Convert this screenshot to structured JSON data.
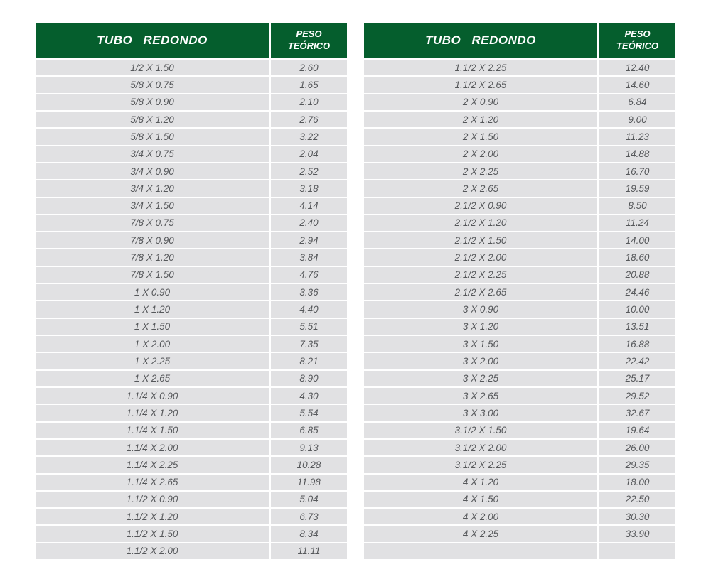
{
  "colors": {
    "header_green": "#055e2d",
    "row_gray": "#e1e1e3",
    "text_gray": "#56585b",
    "header_text": "#ffffff"
  },
  "tables": [
    {
      "id": "left",
      "header": {
        "product": "TUBO REDONDO",
        "weight": "PESO TEÓRICO"
      },
      "rows": [
        {
          "size": "1/2 X 1.50",
          "weight": "2.60"
        },
        {
          "size": "5/8 X 0.75",
          "weight": "1.65"
        },
        {
          "size": "5/8 X 0.90",
          "weight": "2.10"
        },
        {
          "size": "5/8 X 1.20",
          "weight": "2.76"
        },
        {
          "size": "5/8 X 1.50",
          "weight": "3.22"
        },
        {
          "size": "3/4 X 0.75",
          "weight": "2.04"
        },
        {
          "size": "3/4 X 0.90",
          "weight": "2.52"
        },
        {
          "size": "3/4 X 1.20",
          "weight": "3.18"
        },
        {
          "size": "3/4 X 1.50",
          "weight": "4.14"
        },
        {
          "size": "7/8 X 0.75",
          "weight": "2.40"
        },
        {
          "size": "7/8 X 0.90",
          "weight": "2.94"
        },
        {
          "size": "7/8 X 1.20",
          "weight": "3.84"
        },
        {
          "size": "7/8 X 1.50",
          "weight": "4.76"
        },
        {
          "size": "1 X 0.90",
          "weight": "3.36"
        },
        {
          "size": "1 X 1.20",
          "weight": "4.40"
        },
        {
          "size": "1 X 1.50",
          "weight": "5.51"
        },
        {
          "size": "1 X 2.00",
          "weight": "7.35"
        },
        {
          "size": "1 X 2.25",
          "weight": "8.21"
        },
        {
          "size": "1 X 2.65",
          "weight": "8.90"
        },
        {
          "size": "1.1/4 X 0.90",
          "weight": "4.30"
        },
        {
          "size": "1.1/4 X 1.20",
          "weight": "5.54"
        },
        {
          "size": "1.1/4 X 1.50",
          "weight": "6.85"
        },
        {
          "size": "1.1/4 X 2.00",
          "weight": "9.13"
        },
        {
          "size": "1.1/4 X 2.25",
          "weight": "10.28"
        },
        {
          "size": "1.1/4 X 2.65",
          "weight": "11.98"
        },
        {
          "size": "1.1/2 X 0.90",
          "weight": "5.04"
        },
        {
          "size": "1.1/2 X 1.20",
          "weight": "6.73"
        },
        {
          "size": "1.1/2 X 1.50",
          "weight": "8.34"
        },
        {
          "size": "1.1/2 X 2.00",
          "weight": "11.11"
        }
      ]
    },
    {
      "id": "right",
      "header": {
        "product": "TUBO REDONDO",
        "weight": "PESO TEÓRICO"
      },
      "rows": [
        {
          "size": "1.1/2 X 2.25",
          "weight": "12.40"
        },
        {
          "size": "1.1/2 X 2.65",
          "weight": "14.60"
        },
        {
          "size": "2 X 0.90",
          "weight": "6.84"
        },
        {
          "size": "2 X 1.20",
          "weight": "9.00"
        },
        {
          "size": "2 X 1.50",
          "weight": "11.23"
        },
        {
          "size": "2 X 2.00",
          "weight": "14.88"
        },
        {
          "size": "2 X 2.25",
          "weight": "16.70"
        },
        {
          "size": "2 X 2.65",
          "weight": "19.59"
        },
        {
          "size": "2.1/2 X 0.90",
          "weight": "8.50"
        },
        {
          "size": "2.1/2 X 1.20",
          "weight": "11.24"
        },
        {
          "size": "2.1/2 X 1.50",
          "weight": "14.00"
        },
        {
          "size": "2.1/2 X 2.00",
          "weight": "18.60"
        },
        {
          "size": "2.1/2 X 2.25",
          "weight": "20.88"
        },
        {
          "size": "2.1/2 X 2.65",
          "weight": "24.46"
        },
        {
          "size": "3 X 0.90",
          "weight": "10.00"
        },
        {
          "size": "3 X 1.20",
          "weight": "13.51"
        },
        {
          "size": "3 X 1.50",
          "weight": "16.88"
        },
        {
          "size": "3 X 2.00",
          "weight": "22.42"
        },
        {
          "size": "3 X 2.25",
          "weight": "25.17"
        },
        {
          "size": "3 X 2.65",
          "weight": "29.52"
        },
        {
          "size": "3 X 3.00",
          "weight": "32.67"
        },
        {
          "size": "3.1/2 X 1.50",
          "weight": "19.64"
        },
        {
          "size": "3.1/2 X 2.00",
          "weight": "26.00"
        },
        {
          "size": "3.1/2 X 2.25",
          "weight": "29.35"
        },
        {
          "size": "4 X 1.20",
          "weight": "18.00"
        },
        {
          "size": "4 X 1.50",
          "weight": "22.50"
        },
        {
          "size": "4 X 2.00",
          "weight": "30.30"
        },
        {
          "size": "4 X 2.25",
          "weight": "33.90"
        },
        {
          "size": "",
          "weight": ""
        }
      ]
    }
  ]
}
